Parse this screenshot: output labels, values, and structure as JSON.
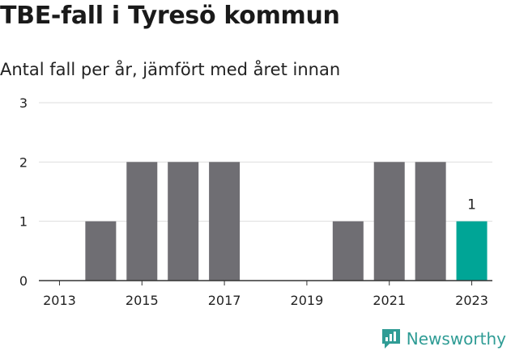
{
  "title": "TBE-fall i Tyresö kommun",
  "subtitle": "Antal fall per år, jämfört med året innan",
  "brand": "Newsworthy",
  "colors": {
    "bar": "#6f6e73",
    "highlight": "#00a596",
    "grid": "#dedede",
    "axis": "#333333",
    "brand": "#2f9c95"
  },
  "chart_data": {
    "type": "bar",
    "categories": [
      "2013",
      "2014",
      "2015",
      "2016",
      "2017",
      "2018",
      "2019",
      "2020",
      "2021",
      "2022",
      "2023"
    ],
    "values": [
      0,
      1,
      2,
      2,
      2,
      0,
      0,
      1,
      2,
      2,
      1
    ],
    "highlight_index": 10,
    "data_labels": {
      "2023": "1"
    },
    "x_tick_labels": [
      "2013",
      "2015",
      "2017",
      "2019",
      "2021",
      "2023"
    ],
    "y_ticks": [
      0,
      1,
      2,
      3
    ],
    "ylim": [
      0,
      3
    ],
    "grid": true
  }
}
